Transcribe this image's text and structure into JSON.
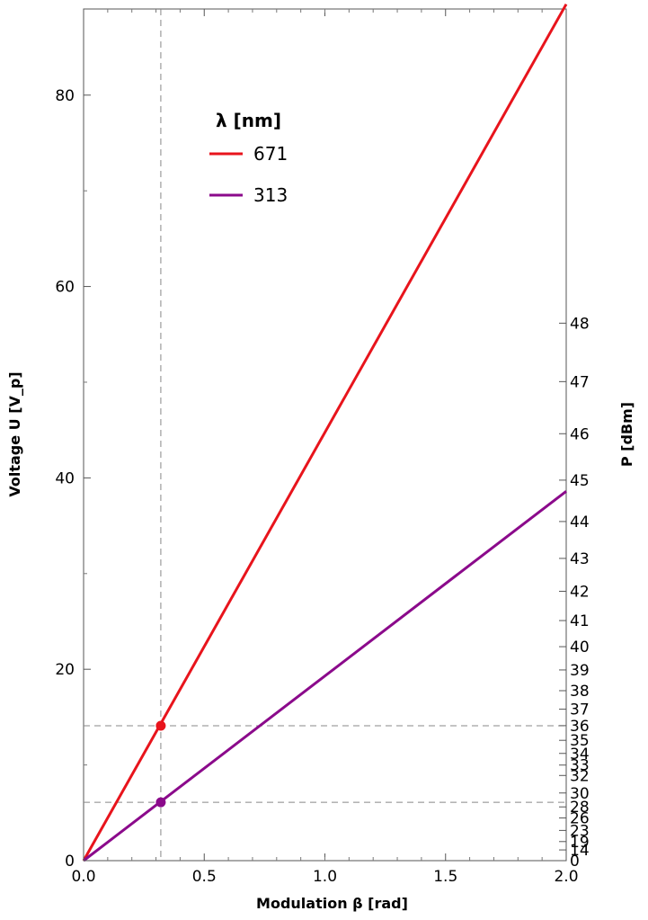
{
  "chart_data": {
    "type": "line",
    "xlabel": "Modulation β [rad]",
    "ylabel": "Voltage U [V_p]",
    "ylabel_right": "P [dBm]",
    "xlim": [
      0,
      2.0
    ],
    "ylim": [
      0,
      89
    ],
    "x_ticks": [
      {
        "value": 0,
        "label": "0.0"
      },
      {
        "value": 0.5,
        "label": "0.5"
      },
      {
        "value": 1.0,
        "label": "1.0"
      },
      {
        "value": 1.5,
        "label": "1.5"
      },
      {
        "value": 2.0,
        "label": "2.0"
      }
    ],
    "y_ticks_left": [
      {
        "value": 0,
        "label": "0"
      },
      {
        "value": 20,
        "label": "20"
      },
      {
        "value": 40,
        "label": "40"
      },
      {
        "value": 60,
        "label": "60"
      },
      {
        "value": 80,
        "label": "80"
      }
    ],
    "y_ticks_right": [
      {
        "value": 0,
        "label": "0"
      },
      {
        "value": 14,
        "label": "14"
      },
      {
        "value": 19,
        "label": "19"
      },
      {
        "value": 23,
        "label": "23"
      },
      {
        "value": 26,
        "label": "26"
      },
      {
        "value": 28,
        "label": "28"
      },
      {
        "value": 30,
        "label": "30"
      },
      {
        "value": 32,
        "label": "32"
      },
      {
        "value": 33,
        "label": "33"
      },
      {
        "value": 34,
        "label": "34"
      },
      {
        "value": 35,
        "label": "35"
      },
      {
        "value": 36,
        "label": "36"
      },
      {
        "value": 37,
        "label": "37"
      },
      {
        "value": 38,
        "label": "38"
      },
      {
        "value": 39,
        "label": "39"
      },
      {
        "value": 40,
        "label": "40"
      },
      {
        "value": 41,
        "label": "41"
      },
      {
        "value": 42,
        "label": "42"
      },
      {
        "value": 43,
        "label": "43"
      },
      {
        "value": 44,
        "label": "44"
      },
      {
        "value": 45,
        "label": "45"
      },
      {
        "value": 46,
        "label": "46"
      },
      {
        "value": 47,
        "label": "47"
      },
      {
        "value": 48,
        "label": "48"
      }
    ],
    "legend": {
      "title": "λ [nm]",
      "placement": "top-left"
    },
    "series": [
      {
        "name": "671",
        "color": "#e8141c",
        "x": [
          0,
          2.0
        ],
        "y": [
          0,
          89.5
        ]
      },
      {
        "name": "313",
        "color": "#8b0a8b",
        "x": [
          0,
          2.0
        ],
        "y": [
          0,
          38.6
        ]
      }
    ],
    "marked_points": [
      {
        "series": "671",
        "x": 0.32,
        "y": 14.1,
        "color": "#e8141c"
      },
      {
        "series": "313",
        "x": 0.32,
        "y": 6.1,
        "color": "#8b0a8b"
      }
    ],
    "reference_lines": [
      {
        "orientation": "vertical",
        "x": 0.32
      },
      {
        "orientation": "horizontal",
        "y": 14.1
      },
      {
        "orientation": "horizontal",
        "y": 6.1
      }
    ],
    "grid": false
  }
}
